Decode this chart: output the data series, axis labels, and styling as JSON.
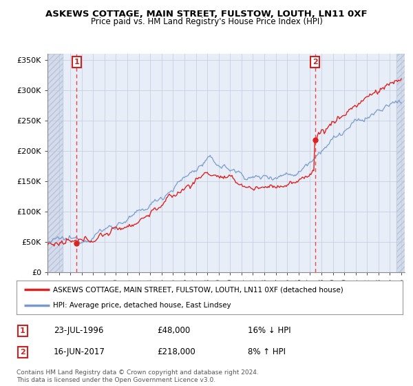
{
  "title": "ASKEWS COTTAGE, MAIN STREET, FULSTOW, LOUTH, LN11 0XF",
  "subtitle": "Price paid vs. HM Land Registry's House Price Index (HPI)",
  "legend_line1": "ASKEWS COTTAGE, MAIN STREET, FULSTOW, LOUTH, LN11 0XF (detached house)",
  "legend_line2": "HPI: Average price, detached house, East Lindsey",
  "annotation1_date": "23-JUL-1996",
  "annotation1_price": "£48,000",
  "annotation1_hpi": "16% ↓ HPI",
  "annotation2_date": "16-JUN-2017",
  "annotation2_price": "£218,000",
  "annotation2_hpi": "8% ↑ HPI",
  "footnote": "Contains HM Land Registry data © Crown copyright and database right 2024.\nThis data is licensed under the Open Government Licence v3.0.",
  "sale1_year": 1996.55,
  "sale1_value": 48000,
  "sale2_year": 2017.45,
  "sale2_value": 218000,
  "ylim": [
    0,
    360000
  ],
  "xlim_start": 1994.0,
  "xlim_end": 2025.3,
  "background_color": "#e8eef8",
  "grid_color": "#c8cfe0",
  "red_line_color": "#dd2222",
  "blue_line_color": "#7799cc",
  "sale_dot_color": "#dd2222",
  "dashed_vline_color": "#ee4444",
  "box_color": "#cc2222",
  "hatch_bg": "#d4dbed"
}
